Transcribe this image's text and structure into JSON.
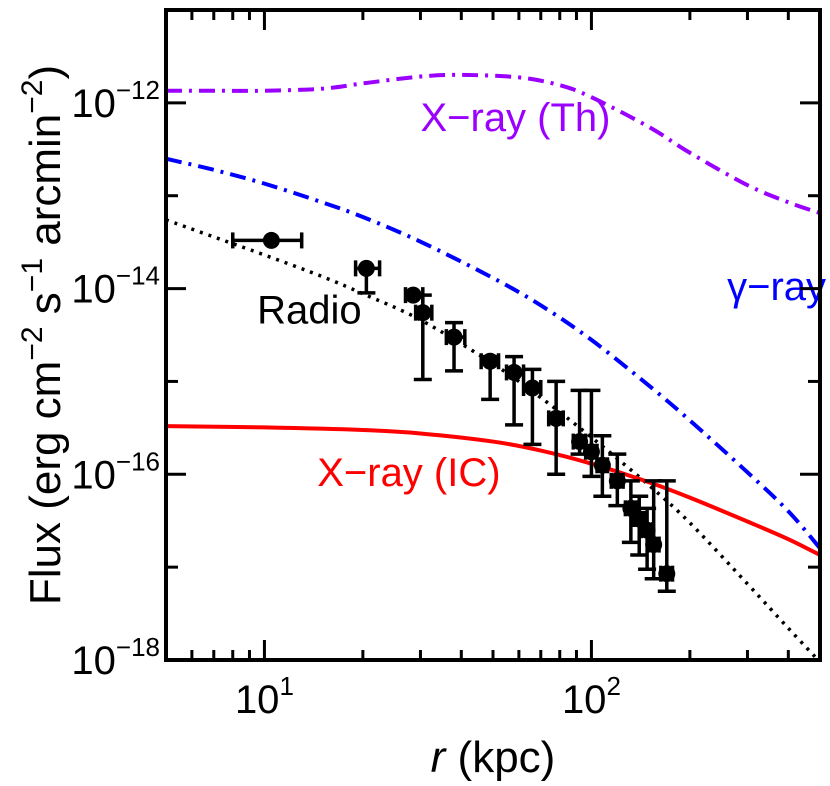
{
  "chart_data": {
    "type": "line",
    "xlabel": {
      "italic": "r",
      "rest": " (kpc)"
    },
    "ylabel": {
      "parts": [
        {
          "text": "Flux (erg cm",
          "sup": false
        },
        {
          "text": "−2",
          "sup": true
        },
        {
          "text": " s",
          "sup": false
        },
        {
          "text": "−1",
          "sup": true
        },
        {
          "text": " arcmin",
          "sup": false
        },
        {
          "text": "−2",
          "sup": true
        },
        {
          "text": ")",
          "sup": false
        }
      ]
    },
    "x_scale": "log",
    "y_scale": "log",
    "xlim": [
      5,
      500
    ],
    "ylim": [
      1e-18,
      1e-11
    ],
    "x_major_ticks": [
      {
        "value": 10,
        "base": "10",
        "exp": "1"
      },
      {
        "value": 100,
        "base": "10",
        "exp": "2"
      }
    ],
    "y_major_ticks": [
      {
        "value": 1e-18,
        "base": "10",
        "exp": "−18"
      },
      {
        "value": 1e-16,
        "base": "10",
        "exp": "−16"
      },
      {
        "value": 1e-14,
        "base": "10",
        "exp": "−14"
      },
      {
        "value": 1e-12,
        "base": "10",
        "exp": "−12"
      }
    ],
    "series": [
      {
        "name": "X−ray (Th)",
        "color": "#9b00ff",
        "style": "dash-dot",
        "x": [
          5,
          7,
          10,
          15,
          20,
          30,
          40,
          60,
          80,
          100,
          150,
          200,
          300,
          400,
          500
        ],
        "y": [
          1.35e-12,
          1.35e-12,
          1.35e-12,
          1.42e-12,
          1.62e-12,
          1.92e-12,
          2e-12,
          1.88e-12,
          1.55e-12,
          1.15e-12,
          5.5e-13,
          2.9e-13,
          1.3e-13,
          8.5e-14,
          6.5e-14
        ]
      },
      {
        "name": "γ−ray",
        "color": "#0000ff",
        "style": "dash-dot",
        "x": [
          5,
          7,
          10,
          15,
          20,
          30,
          50,
          70,
          100,
          150,
          200,
          300,
          400,
          500
        ],
        "y": [
          2.5e-13,
          1.9e-13,
          1.35e-13,
          8.5e-14,
          5.9e-14,
          3.2e-14,
          1.3e-14,
          6.6e-15,
          2.8e-15,
          9e-16,
          3.8e-16,
          1.05e-16,
          4e-17,
          1.6e-17
        ]
      },
      {
        "name": "Radio",
        "color": "#000000",
        "style": "dotted",
        "x": [
          5,
          7,
          10,
          15,
          20,
          30,
          50,
          70,
          100,
          150,
          200,
          300,
          400,
          500
        ],
        "y": [
          5.5e-14,
          3.6e-14,
          2.3e-14,
          1.35e-14,
          8.8e-15,
          4.6e-15,
          1.55e-15,
          6.7e-16,
          2.5e-16,
          7.6e-17,
          3e-17,
          6.6e-18,
          2.2e-18,
          9.5e-19
        ]
      },
      {
        "name": "X−ray (IC)",
        "color": "#ff0000",
        "style": "solid",
        "x": [
          5,
          10,
          20,
          30,
          50,
          70,
          100,
          150,
          200,
          300,
          400,
          500
        ],
        "y": [
          3.3e-16,
          3.2e-16,
          3e-16,
          2.75e-16,
          2.25e-16,
          1.8e-16,
          1.3e-16,
          8.2e-17,
          5.6e-17,
          3.1e-17,
          2e-17,
          1.35e-17
        ]
      }
    ],
    "observed": {
      "name": "data",
      "color": "#000000",
      "points": [
        {
          "x": 10.5,
          "y": 3.3e-14,
          "xlo": 8.0,
          "xhi": 13.0,
          "ylo": null,
          "yhi": null
        },
        {
          "x": 20.5,
          "y": 1.65e-14,
          "xlo": 19.0,
          "xhi": 22.5,
          "ylo": 9e-15,
          "yhi": null
        },
        {
          "x": 28.5,
          "y": 8.5e-15,
          "xlo": 27.0,
          "xhi": 30.5,
          "ylo": null,
          "yhi": null
        },
        {
          "x": 30.5,
          "y": 5.5e-15,
          "xlo": 29.0,
          "xhi": 32.5,
          "ylo": 1.05e-15,
          "yhi": 8.5e-15
        },
        {
          "x": 38.0,
          "y": 3e-15,
          "xlo": 36.0,
          "xhi": 41.0,
          "ylo": 1.3e-15,
          "yhi": 4.3e-15
        },
        {
          "x": 49.0,
          "y": 1.65e-15,
          "xlo": 46.0,
          "xhi": 52.0,
          "ylo": 6.4e-16,
          "yhi": 1.85e-15
        },
        {
          "x": 58.0,
          "y": 1.25e-15,
          "xlo": 55.0,
          "xhi": 62.0,
          "ylo": 3.4e-16,
          "yhi": 1.85e-15
        },
        {
          "x": 66.0,
          "y": 8.5e-16,
          "xlo": 62.0,
          "xhi": 70.0,
          "ylo": 2.1e-16,
          "yhi": 1.35e-15
        },
        {
          "x": 78.0,
          "y": 4e-16,
          "xlo": 74.0,
          "xhi": 82.0,
          "ylo": 1e-16,
          "yhi": 1e-15
        },
        {
          "x": 92.0,
          "y": 2.25e-16,
          "xlo": 88.0,
          "xhi": 96.0,
          "ylo": 1.65e-16,
          "yhi": 8e-16
        },
        {
          "x": 100.0,
          "y": 1.75e-16,
          "xlo": 96.0,
          "xhi": 104.0,
          "ylo": 9.5e-17,
          "yhi": 8e-16
        },
        {
          "x": 108.0,
          "y": 1.25e-16,
          "xlo": 104.0,
          "xhi": 112.0,
          "ylo": 5.8e-17,
          "yhi": 2.6e-16
        },
        {
          "x": 120.0,
          "y": 8.5e-17,
          "xlo": 115.0,
          "xhi": 125.0,
          "ylo": 4.6e-17,
          "yhi": 1.65e-16
        },
        {
          "x": 132.0,
          "y": 4.3e-17,
          "xlo": 127.0,
          "xhi": 137.0,
          "ylo": 1.85e-17,
          "yhi": 8.5e-17
        },
        {
          "x": 140.0,
          "y": 3.3e-17,
          "xlo": 135.0,
          "xhi": 145.0,
          "ylo": 1.35e-17,
          "yhi": 5.8e-17
        },
        {
          "x": 148.0,
          "y": 2.5e-17,
          "xlo": 142.0,
          "xhi": 154.0,
          "ylo": 9.5e-18,
          "yhi": 4.3e-17
        },
        {
          "x": 155.0,
          "y": 1.75e-17,
          "xlo": 149.0,
          "xhi": 161.0,
          "ylo": 7.5e-18,
          "yhi": 8.5e-17
        },
        {
          "x": 170.0,
          "y": 8.5e-18,
          "xlo": 163.0,
          "xhi": 177.0,
          "ylo": 5.5e-18,
          "yhi": 8.5e-17
        }
      ]
    },
    "series_labels": [
      {
        "text": "X−ray (Th)",
        "color": "#9b00ff",
        "x": 30,
        "y": 5e-13
      },
      {
        "text": "γ−ray",
        "color": "#0000ff",
        "x": 260,
        "y": 7.5e-15
      },
      {
        "text": "Radio",
        "color": "#000000",
        "x": 9.5,
        "y": 4.2e-15
      },
      {
        "text": "X−ray (IC)",
        "color": "#ff0000",
        "x": 14.5,
        "y": 7.5e-17
      }
    ]
  }
}
